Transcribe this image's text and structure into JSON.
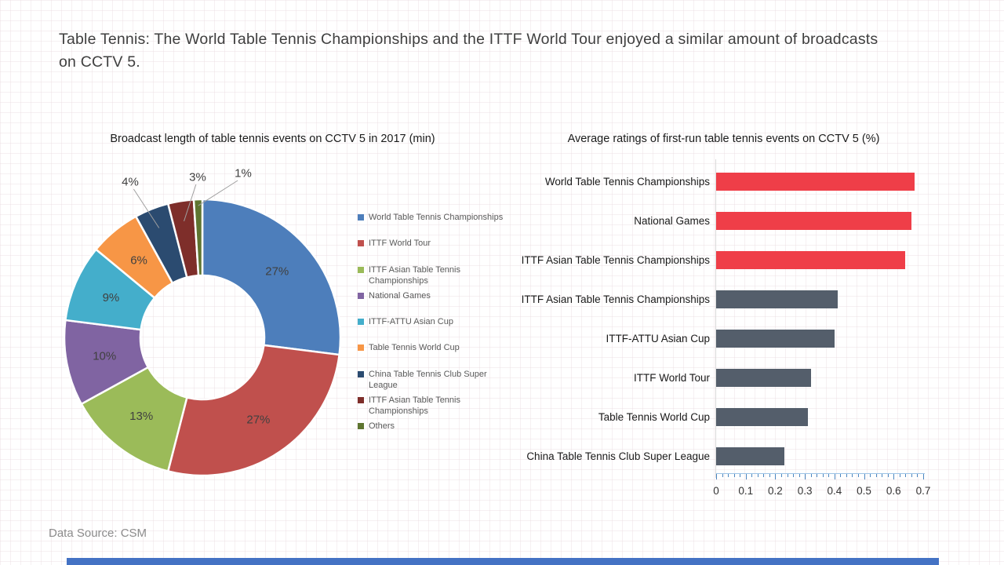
{
  "page": {
    "title_lines": [
      "Table Tennis: The World Table Tennis Championships and the ITTF World Tour enjoyed a similar amount of broadcasts",
      "on CCTV 5."
    ],
    "source": "Data Source: CSM"
  },
  "colors": {
    "title_text": "#3F3F3F",
    "chart_title_text": "#1A1A1A",
    "legend_text": "#595959",
    "percent_label_text": "#404040",
    "bar_label_text": "#1A1A1A",
    "tick_label_text": "#333333",
    "source_text": "#8C8C8C",
    "axis_line": "#9CC2E5",
    "tick_mark": "#4C86C0",
    "category_baseline": "#D9D9D9",
    "leader_line": "#A0A0A0",
    "footer_bar": "#4472C4"
  },
  "chart_data": [
    {
      "type": "pie",
      "subtype": "donut",
      "title": "Broadcast length of table tennis events on CCTV 5 in 2017 (min)",
      "unit": "%",
      "legend_position": "right",
      "slices": [
        {
          "label": "World Table Tennis Championships",
          "value": 27,
          "display": "27%",
          "color": "#4D7EBB"
        },
        {
          "label": "ITTF World Tour",
          "value": 27,
          "display": "27%",
          "color": "#C0504D"
        },
        {
          "label": "ITTF Asian Table Tennis Championships",
          "value": 13,
          "display": "13%",
          "color": "#9BBB59"
        },
        {
          "label": "National Games",
          "value": 10,
          "display": "10%",
          "color": "#8064A2"
        },
        {
          "label": "ITTF-ATTU Asian Cup",
          "value": 9,
          "display": "9%",
          "color": "#44AECB"
        },
        {
          "label": "Table Tennis World Cup",
          "value": 6,
          "display": "6%",
          "color": "#F79646"
        },
        {
          "label": "China Table Tennis Club Super League",
          "value": 4,
          "display": "4%",
          "color": "#2B4B70"
        },
        {
          "label": "ITTF Asian Table Tennis Championships",
          "value": 3,
          "display": "3%",
          "color": "#7E2E2A"
        },
        {
          "label": "Others",
          "value": 1,
          "display": "1%",
          "color": "#5E7530"
        }
      ]
    },
    {
      "type": "bar",
      "orientation": "horizontal",
      "title": "Average ratings of first-run table tennis events on CCTV 5 (%)",
      "categories": [
        "World Table Tennis Championships",
        "National Games",
        "ITTF Asian Table Tennis Championships",
        "ITTF Asian Table Tennis Championships",
        "ITTF-ATTU Asian Cup",
        "ITTF World Tour",
        "Table Tennis World Cup",
        "China Table Tennis Club Super League"
      ],
      "values": [
        0.67,
        0.66,
        0.64,
        0.41,
        0.4,
        0.32,
        0.31,
        0.23
      ],
      "bar_colors": [
        "#EF3E48",
        "#EF3E48",
        "#EF3E48",
        "#545E6B",
        "#545E6B",
        "#545E6B",
        "#545E6B",
        "#545E6B"
      ],
      "xlim": [
        0,
        0.7
      ],
      "x_tick_labels": [
        "0",
        "0.1",
        "0.2",
        "0.3",
        "0.4",
        "0.5",
        "0.6",
        "0.7"
      ],
      "minor_tick_step": 0.02,
      "grid": false,
      "legend": "none"
    }
  ]
}
